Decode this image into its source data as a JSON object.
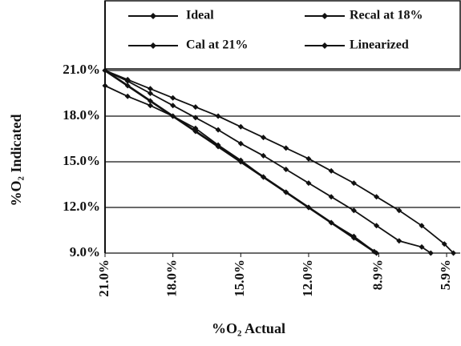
{
  "chart_data": {
    "type": "line",
    "xlabel": "%O₂ Actual",
    "ylabel": "%O₂ Indicated",
    "xlim": [
      21,
      5.3
    ],
    "ylim": [
      9,
      21
    ],
    "xticks": [
      {
        "value": 21,
        "label": "21.0%"
      },
      {
        "value": 18,
        "label": "18.0%"
      },
      {
        "value": 15,
        "label": "15.0%"
      },
      {
        "value": 12,
        "label": "12.0%"
      },
      {
        "value": 8.9,
        "label": "8.9%"
      },
      {
        "value": 5.9,
        "label": "5.9%"
      }
    ],
    "yticks": [
      {
        "value": 9,
        "label": "9.0%"
      },
      {
        "value": 12,
        "label": "12.0%"
      },
      {
        "value": 15,
        "label": "15.0%"
      },
      {
        "value": 18,
        "label": "18.0%"
      },
      {
        "value": 21,
        "label": "21.0%"
      }
    ],
    "grid": true,
    "series": [
      {
        "name": "Ideal",
        "color": "#111111",
        "x": [
          21,
          20,
          19,
          18,
          17,
          16,
          15,
          14,
          13,
          12,
          11,
          10,
          9
        ],
        "values": [
          21,
          20,
          19,
          18,
          17,
          16,
          15,
          14,
          13,
          12,
          11,
          10,
          9
        ]
      },
      {
        "name": "Recal at 18%",
        "color": "#111111",
        "x": [
          21,
          20,
          19,
          18,
          17,
          16,
          15,
          14,
          13,
          12,
          11,
          10,
          9,
          8,
          7,
          6.6
        ],
        "values": [
          21,
          20.3,
          19.5,
          18.7,
          17.9,
          17.1,
          16.2,
          15.4,
          14.5,
          13.6,
          12.7,
          11.8,
          10.8,
          9.8,
          9.4,
          9
        ]
      },
      {
        "name": "Cal at 21%",
        "color": "#111111",
        "x": [
          21,
          20,
          19,
          18,
          17,
          16,
          15,
          14,
          13,
          12,
          11,
          10,
          9,
          8,
          7,
          6,
          5.6
        ],
        "values": [
          21,
          20.4,
          19.8,
          19.2,
          18.6,
          18,
          17.3,
          16.6,
          15.9,
          15.2,
          14.4,
          13.6,
          12.7,
          11.8,
          10.8,
          9.6,
          9
        ]
      },
      {
        "name": "Linearized",
        "color": "#111111",
        "x": [
          21,
          20,
          19,
          18,
          17,
          16,
          15,
          14,
          13,
          12,
          11,
          10,
          9.1
        ],
        "values": [
          20,
          19.3,
          18.7,
          18,
          17.2,
          16.1,
          15.1,
          14,
          13,
          12,
          11,
          10.1,
          9.1
        ]
      }
    ]
  }
}
